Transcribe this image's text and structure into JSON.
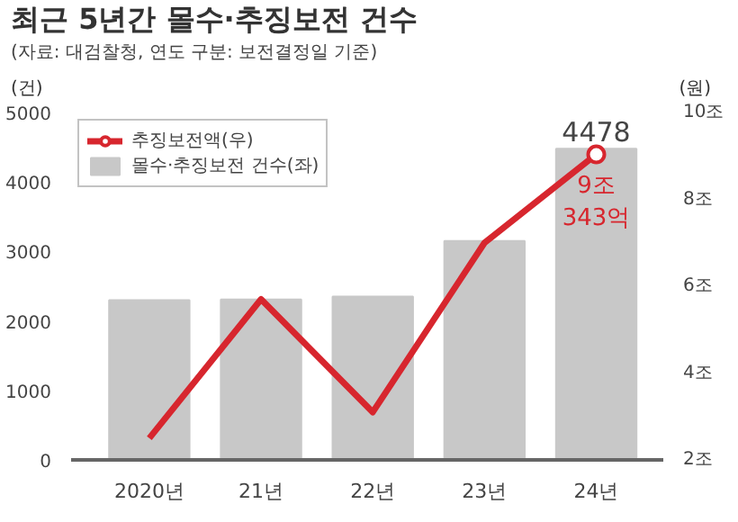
{
  "chart_data": {
    "type": "bar",
    "title": "최근 5년간 몰수·추징보전 건수",
    "subtitle": "(자료: 대검찰청, 연도 구분: 보전결정일 기준)",
    "ylabel": "(건)",
    "y2label": "(원)",
    "categories": [
      "2020년",
      "21년",
      "22년",
      "23년",
      "24년"
    ],
    "series": [
      {
        "name": "몰수·추징보전 건수(좌)",
        "color": "#c8c8c8",
        "values": [
          2300,
          2310,
          2350,
          3150,
          4478
        ],
        "value_labels": [
          null,
          null,
          null,
          null,
          "4478"
        ]
      },
      {
        "name": "추징보전액(우)",
        "type": "line",
        "axis": "y2",
        "color": "#d7262e",
        "values": [
          2.5,
          5.7,
          3.1,
          7.0,
          9.0343
        ],
        "value_labels": [
          null,
          null,
          null,
          null,
          "9조\n343억"
        ]
      }
    ],
    "ylim": [
      0,
      5000
    ],
    "yticks": [
      0,
      1000,
      2000,
      3000,
      4000,
      5000
    ],
    "y2lim": [
      2,
      10
    ],
    "y2ticks": [
      {
        "value": 2,
        "label": "2조"
      },
      {
        "value": 4,
        "label": "4조"
      },
      {
        "value": 6,
        "label": "6조"
      },
      {
        "value": 8,
        "label": "8조"
      },
      {
        "value": 10,
        "label": "10조"
      }
    ],
    "legend": "top left",
    "grid": false
  }
}
